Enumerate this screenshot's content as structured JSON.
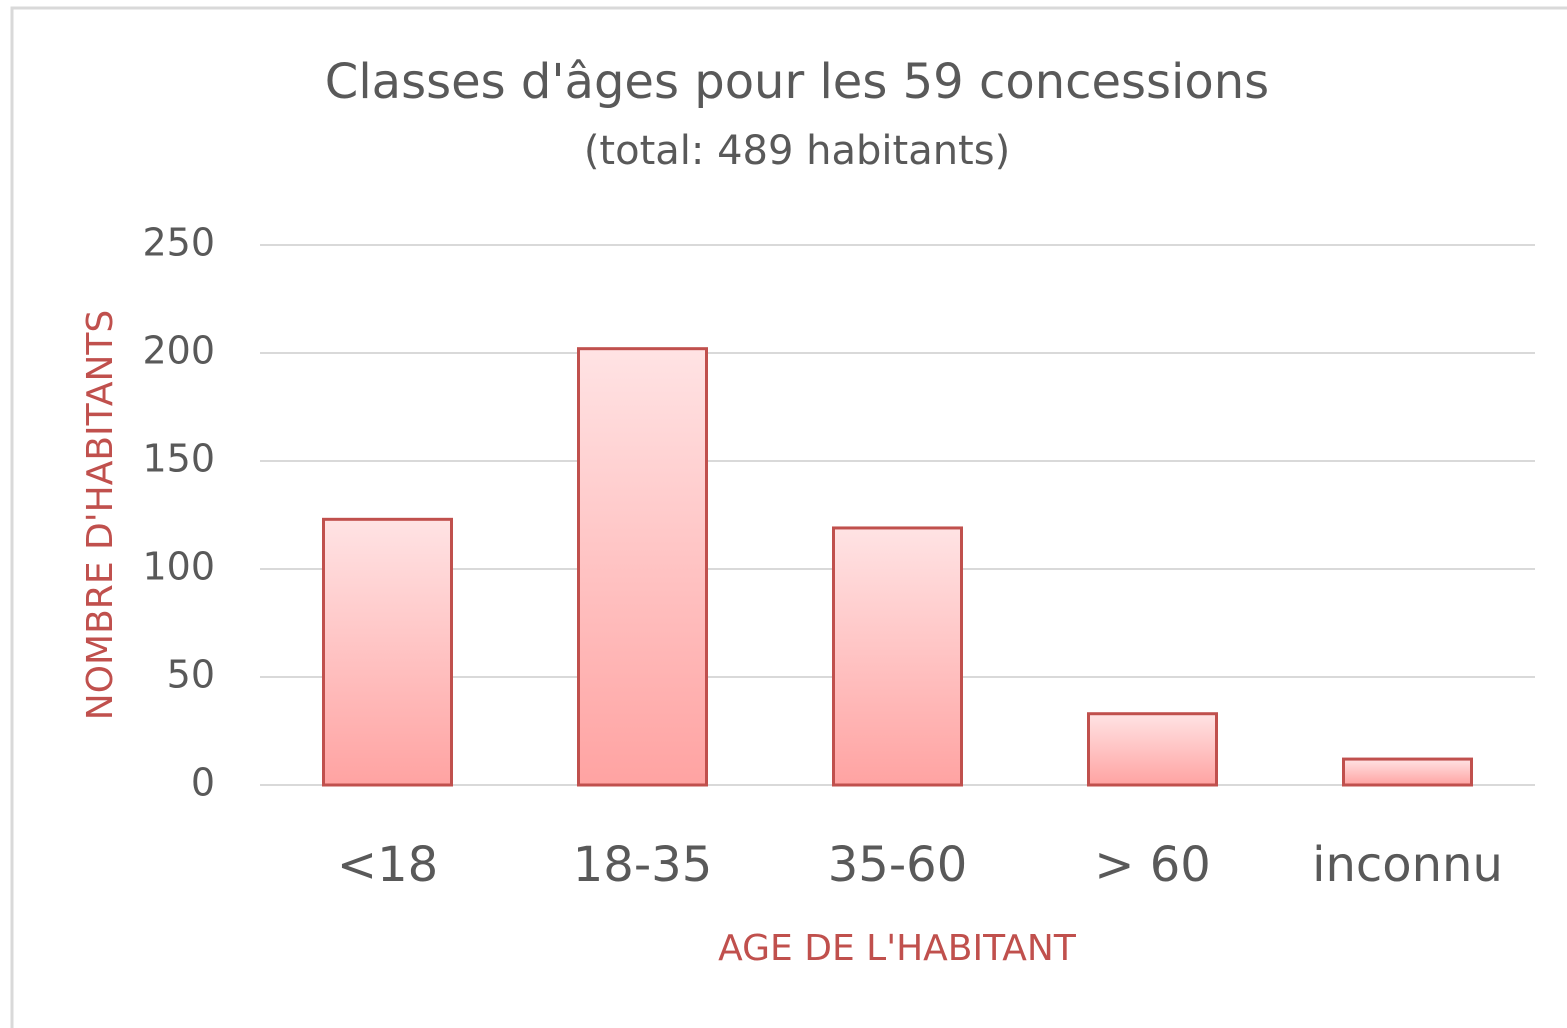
{
  "chart_data": {
    "type": "bar",
    "title": "Classes  d'âges  pour  les  59  concessions",
    "subtitle": "(total: 489 habitants)",
    "x_label": "AGE DE L'HABITANT",
    "y_label": "NOMBRE D'HABITANTS",
    "categories": [
      "<18",
      "18-35",
      "35-60",
      "> 60",
      "inconnu"
    ],
    "values": [
      123,
      202,
      119,
      33,
      12
    ],
    "color": "#c0504d",
    "ylim": [
      0,
      250
    ],
    "yticks": [
      0,
      50,
      100,
      150,
      200,
      250
    ],
    "grid": true
  }
}
